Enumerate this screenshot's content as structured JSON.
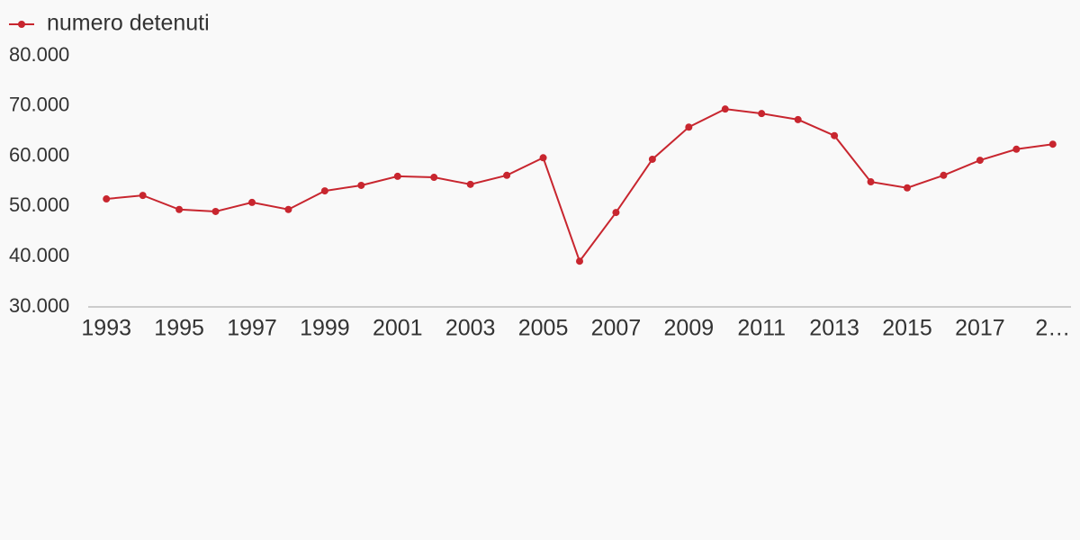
{
  "chart_data": {
    "type": "line",
    "x": [
      1993,
      1994,
      1995,
      1996,
      1997,
      1998,
      1999,
      2000,
      2001,
      2002,
      2003,
      2004,
      2005,
      2006,
      2007,
      2008,
      2009,
      2010,
      2011,
      2012,
      2013,
      2014,
      2015,
      2016,
      2017,
      2018,
      2019
    ],
    "series": [
      {
        "name": "numero detenuti",
        "color": "#c8262f",
        "values": [
          51500,
          52200,
          49400,
          49000,
          50800,
          49400,
          53100,
          54200,
          56000,
          55800,
          54400,
          56200,
          59700,
          39100,
          48800,
          59400,
          65800,
          69400,
          68500,
          67300,
          64100,
          54900,
          53700,
          56200,
          59200,
          61400,
          62400
        ]
      }
    ],
    "xlim": [
      1992.5,
      2019.5
    ],
    "xticks": [
      1993,
      1995,
      1997,
      1999,
      2001,
      2003,
      2005,
      2007,
      2009,
      2011,
      2013,
      2015,
      2017,
      {
        "value": 2019,
        "label": "2…"
      }
    ],
    "ylim": [
      30000,
      80000
    ],
    "yticks": [
      {
        "value": 30000,
        "label": "30.000"
      },
      {
        "value": 40000,
        "label": "40.000"
      },
      {
        "value": 50000,
        "label": "50.000"
      },
      {
        "value": 60000,
        "label": "60.000"
      },
      {
        "value": 70000,
        "label": "70.000"
      },
      {
        "value": 80000,
        "label": "80.000"
      }
    ],
    "legend": "top-left"
  }
}
